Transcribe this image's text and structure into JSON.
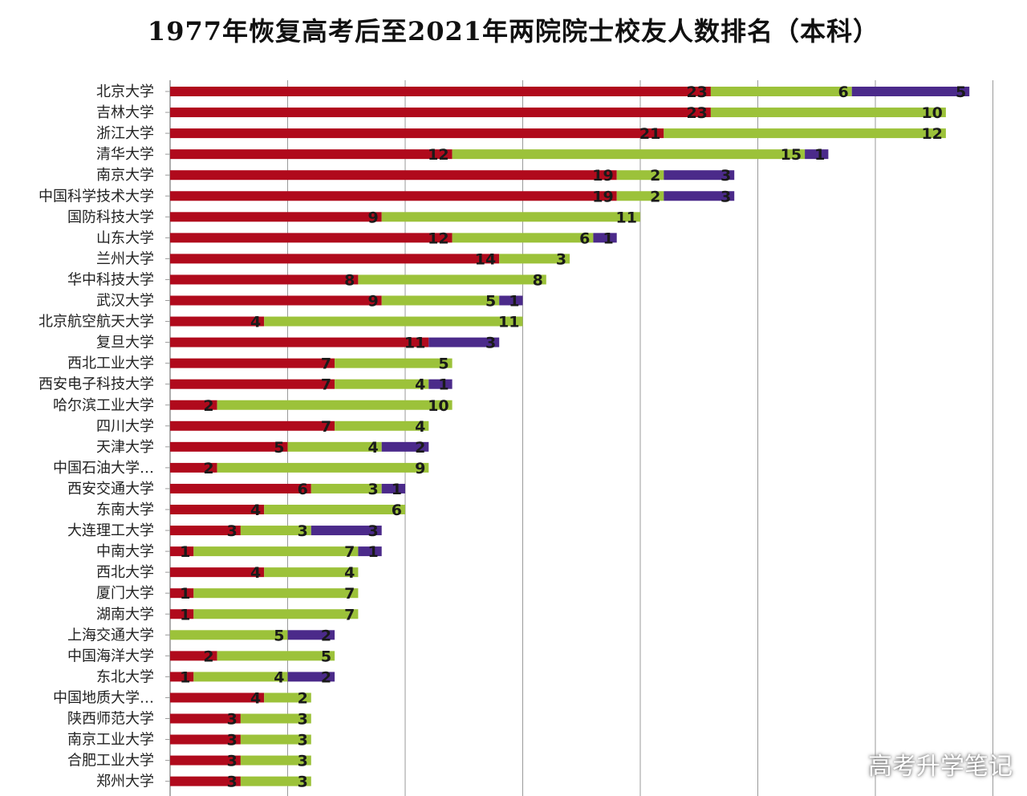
{
  "title": "1977年恢复高考后至2021年两院院士校友人数排名（本科）",
  "watermark": "高考升学笔记",
  "colors": {
    "segment1": "#b00a1c",
    "segment2": "#9cc23a",
    "segment3": "#4b2a8a",
    "grid": "#9a9a9a"
  },
  "chart_data": {
    "type": "bar",
    "orientation": "horizontal",
    "stacked": true,
    "grid": true,
    "xlim": [
      0,
      35
    ],
    "categories": [
      "北京大学",
      "吉林大学",
      "浙江大学",
      "清华大学",
      "南京大学",
      "中国科学技术大学",
      "国防科技大学",
      "山东大学",
      "兰州大学",
      "华中科技大学",
      "武汉大学",
      "北京航空航天大学",
      "复旦大学",
      "西北工业大学",
      "西安电子科技大学",
      "哈尔滨工业大学",
      "四川大学",
      "天津大学",
      "中国石油大学…",
      "西安交通大学",
      "东南大学",
      "大连理工大学",
      "中南大学",
      "西北大学",
      "厦门大学",
      "湖南大学",
      "上海交通大学",
      "中国海洋大学",
      "东北大学",
      "中国地质大学…",
      "陕西师范大学",
      "南京工业大学",
      "合肥工业大学",
      "郑州大学"
    ],
    "series": [
      {
        "values": [
          23,
          23,
          21,
          12,
          19,
          19,
          9,
          12,
          14,
          8,
          9,
          4,
          11,
          7,
          7,
          2,
          7,
          5,
          2,
          6,
          4,
          3,
          1,
          4,
          1,
          1,
          0,
          2,
          1,
          4,
          3,
          3,
          3,
          3
        ]
      },
      {
        "values": [
          6,
          10,
          12,
          15,
          2,
          2,
          11,
          6,
          3,
          8,
          5,
          11,
          0,
          5,
          4,
          10,
          4,
          4,
          9,
          3,
          6,
          3,
          7,
          4,
          7,
          7,
          5,
          5,
          4,
          2,
          3,
          3,
          3,
          3
        ]
      },
      {
        "values": [
          5,
          0,
          0,
          1,
          3,
          3,
          0,
          1,
          0,
          0,
          1,
          0,
          3,
          0,
          1,
          0,
          0,
          2,
          0,
          1,
          0,
          3,
          1,
          0,
          0,
          0,
          2,
          0,
          2,
          0,
          0,
          0,
          0,
          0
        ]
      }
    ]
  }
}
